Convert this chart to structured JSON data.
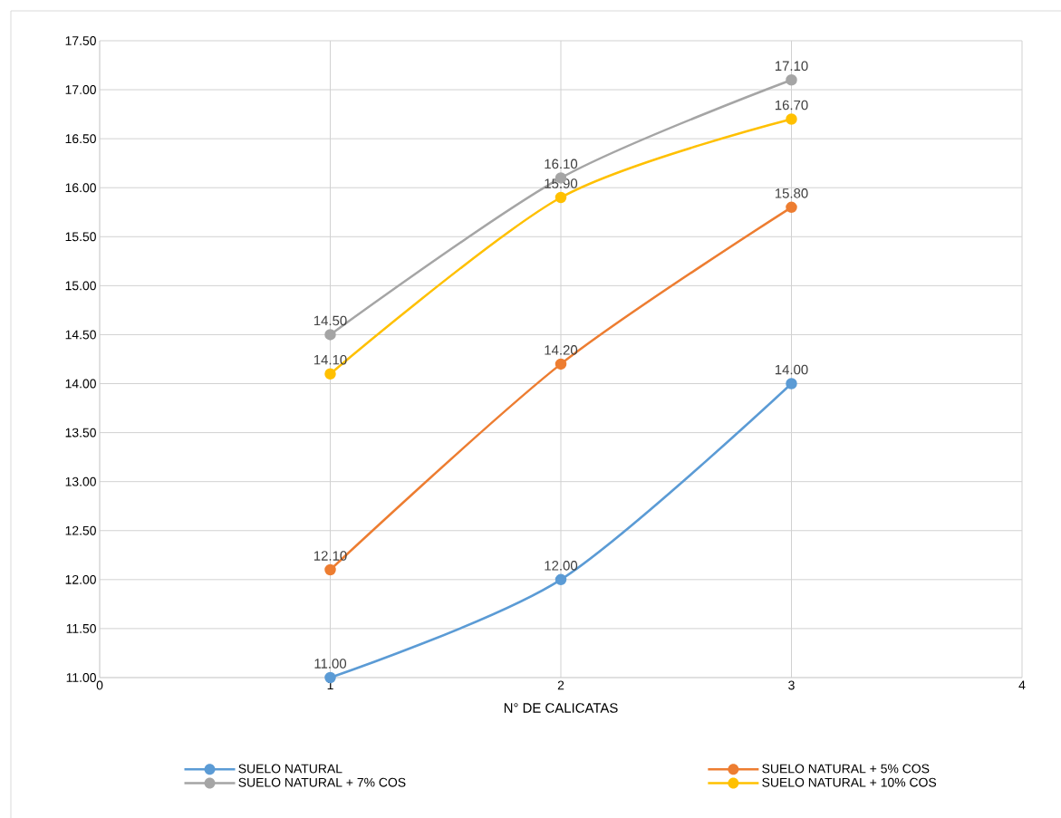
{
  "chart_data": {
    "type": "line",
    "xlabel": "N° DE CALICATAS",
    "x": [
      1,
      2,
      3
    ],
    "xlim": [
      0,
      4
    ],
    "xticks": [
      0,
      1,
      2,
      3,
      4
    ],
    "ylim": [
      11,
      17.5
    ],
    "yticks": [
      {
        "value": 11,
        "label": "11.00"
      },
      {
        "value": 11.5,
        "label": "11.50"
      },
      {
        "value": 12,
        "label": "12.00"
      },
      {
        "value": 12.5,
        "label": "12.50"
      },
      {
        "value": 13,
        "label": "13.00"
      },
      {
        "value": 13.5,
        "label": "13.50"
      },
      {
        "value": 14,
        "label": "14.00"
      },
      {
        "value": 14.5,
        "label": "14.50"
      },
      {
        "value": 15,
        "label": "15.00"
      },
      {
        "value": 15.5,
        "label": "15.50"
      },
      {
        "value": 16,
        "label": "16.00"
      },
      {
        "value": 16.5,
        "label": "16.50"
      },
      {
        "value": 17,
        "label": "17.00"
      },
      {
        "value": 17.5,
        "label": "17.50"
      }
    ],
    "grid": true,
    "legend": "bottom",
    "marker": "circle",
    "line_style": "solid",
    "series": [
      {
        "name": "SUELO NATURAL",
        "color": "#5b9bd5",
        "values": [
          11.0,
          12.0,
          14.0
        ],
        "value_labels": [
          "11.00",
          "12.00",
          "14.00"
        ]
      },
      {
        "name": "SUELO NATURAL + 5% COS",
        "color": "#ed7d31",
        "values": [
          12.1,
          14.2,
          15.8
        ],
        "value_labels": [
          "12.10",
          "14.20",
          "15.80"
        ]
      },
      {
        "name": "SUELO NATURAL + 7% COS",
        "color": "#a5a5a5",
        "values": [
          14.5,
          16.1,
          17.1
        ],
        "value_labels": [
          "14.50",
          "16.10",
          "17.10"
        ]
      },
      {
        "name": "SUELO NATURAL + 10% COS",
        "color": "#ffc000",
        "values": [
          14.1,
          15.9,
          16.7
        ],
        "value_labels": [
          "14.10",
          "15.90",
          "16.70"
        ]
      }
    ]
  }
}
